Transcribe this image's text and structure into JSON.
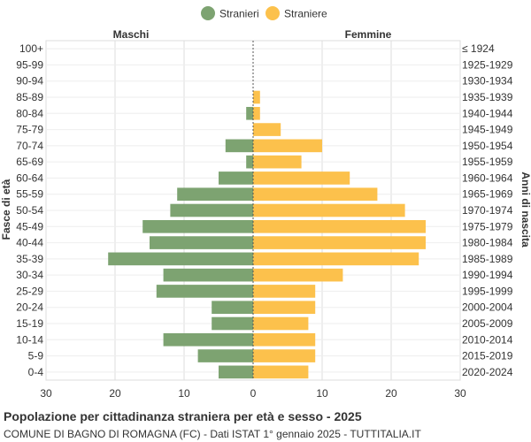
{
  "chart_data": {
    "type": "bar",
    "orientation": "horizontal-pyramid",
    "left_header": "Maschi",
    "right_header": "Femmine",
    "ylabel_left": "Fasce di età",
    "ylabel_right": "Anni di nascita",
    "xlim": [
      -30,
      30
    ],
    "xticks": [
      "30",
      "20",
      "10",
      "0",
      "10",
      "20",
      "30"
    ],
    "grid": true,
    "legend_position": "top-center",
    "series": [
      {
        "name": "Stranieri",
        "color": "#7da371",
        "side": "left",
        "values": [
          0,
          0,
          0,
          0,
          1,
          0,
          4,
          1,
          5,
          11,
          12,
          16,
          15,
          21,
          13,
          14,
          6,
          6,
          13,
          8,
          5
        ]
      },
      {
        "name": "Straniere",
        "color": "#fcc14c",
        "side": "right",
        "values": [
          0,
          0,
          0,
          1,
          1,
          4,
          10,
          7,
          14,
          18,
          22,
          25,
          25,
          24,
          13,
          9,
          9,
          8,
          9,
          9,
          8
        ]
      }
    ],
    "categories": [
      "100+",
      "95-99",
      "90-94",
      "85-89",
      "80-84",
      "75-79",
      "70-74",
      "65-69",
      "60-64",
      "55-59",
      "50-54",
      "45-49",
      "40-44",
      "35-39",
      "30-34",
      "25-29",
      "20-24",
      "15-19",
      "10-14",
      "5-9",
      "0-4"
    ],
    "birth_years": [
      "≤ 1924",
      "1925-1929",
      "1930-1934",
      "1935-1939",
      "1940-1944",
      "1945-1949",
      "1950-1954",
      "1955-1959",
      "1960-1964",
      "1965-1969",
      "1970-1974",
      "1975-1979",
      "1980-1984",
      "1985-1989",
      "1990-1994",
      "1995-1999",
      "2000-2004",
      "2005-2009",
      "2010-2014",
      "2015-2019",
      "2020-2024"
    ],
    "title": "Popolazione per cittadinanza straniera per età e sesso - 2025",
    "subtitle": "COMUNE DI BAGNO DI ROMAGNA (FC) - Dati ISTAT 1° gennaio 2025 - TUTTITALIA.IT"
  }
}
